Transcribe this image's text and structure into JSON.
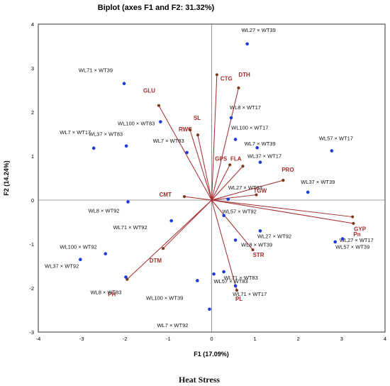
{
  "chart_data": {
    "type": "scatter",
    "title": "Biplot (axes F1 and F2: 31.32%)",
    "xlabel": "F1 (17.09%)",
    "ylabel": "F2 (14.24%)",
    "xlim": [
      -4,
      4
    ],
    "ylim": [
      -3,
      4
    ],
    "xticks": [
      -4,
      -3,
      -2,
      -1,
      0,
      1,
      2,
      3,
      4
    ],
    "yticks": [
      -3,
      -2,
      -1,
      0,
      1,
      2,
      3,
      4
    ],
    "grid": false,
    "observations": [
      {
        "label": "WL27 × WT39",
        "x": 0.82,
        "y": 3.55
      },
      {
        "label": "WL71 × WT39",
        "x": -2.02,
        "y": 2.65
      },
      {
        "label": "WL100 × WT83",
        "x": -1.18,
        "y": 1.78
      },
      {
        "label": "WL8 × WT17",
        "x": 0.45,
        "y": 1.87
      },
      {
        "label": "WL100 × WT17",
        "x": 0.55,
        "y": 1.38
      },
      {
        "label": "WL7 × WT17",
        "x": -2.72,
        "y": 1.18
      },
      {
        "label": "WL37 × WT83",
        "x": -1.97,
        "y": 1.23
      },
      {
        "label": "WL7 × WT83",
        "x": -0.57,
        "y": 1.08
      },
      {
        "label": "WL7 × WT39",
        "x": 1.05,
        "y": 1.19
      },
      {
        "label": "WL57 × WT17",
        "x": 2.77,
        "y": 1.12
      },
      {
        "label": "WL37 × WT17",
        "x": 1.12,
        "y": 0.86
      },
      {
        "label": "WL37 × WT39",
        "x": 2.22,
        "y": 0.18
      },
      {
        "label": "WL27 × WT83",
        "x": 0.38,
        "y": 0.02
      },
      {
        "label": "WL8 × WT92",
        "x": -1.93,
        "y": -0.04
      },
      {
        "label": "WL57 × WT92",
        "x": 0.28,
        "y": -0.35
      },
      {
        "label": "WL71 × WT92",
        "x": -0.93,
        "y": -0.47
      },
      {
        "label": "WL27 × WT92",
        "x": 1.12,
        "y": -0.7
      },
      {
        "label": "WL8 × WT39",
        "x": 0.55,
        "y": -0.91
      },
      {
        "label": "WL27 × WT17",
        "x": 2.85,
        "y": -0.95
      },
      {
        "label": "WL57 × WT39",
        "x": 3.02,
        "y": -0.88
      },
      {
        "label": "WL100 × WT92",
        "x": -2.45,
        "y": -1.22
      },
      {
        "label": "WL37 × WT92",
        "x": -3.03,
        "y": -1.35
      },
      {
        "label": "WL8 × WT83",
        "x": -1.98,
        "y": -1.75
      },
      {
        "label": "WL71 × WT83",
        "x": 0.28,
        "y": -1.63
      },
      {
        "label": "WL57 × WT83",
        "x": 0.05,
        "y": -1.68
      },
      {
        "label": "WL100 × WT39",
        "x": -0.33,
        "y": -1.83
      },
      {
        "label": "WL71 × WT17",
        "x": 0.55,
        "y": -1.95
      },
      {
        "label": "WL7 × WT92",
        "x": -0.05,
        "y": -2.48
      }
    ],
    "variables": [
      {
        "label": "CTG",
        "x": 0.12,
        "y": 2.85
      },
      {
        "label": "DTH",
        "x": 0.62,
        "y": 2.55
      },
      {
        "label": "GLU",
        "x": -1.22,
        "y": 2.15
      },
      {
        "label": "SL",
        "x": -0.5,
        "y": 1.6
      },
      {
        "label": "RWC",
        "x": -0.32,
        "y": 1.48
      },
      {
        "label": "GPS",
        "x": 0.42,
        "y": 0.8
      },
      {
        "label": "FLA",
        "x": 0.72,
        "y": 0.77
      },
      {
        "label": "PRO",
        "x": 1.65,
        "y": 0.45
      },
      {
        "label": "TGW",
        "x": 1.03,
        "y": 0.12
      },
      {
        "label": "CMT",
        "x": -0.63,
        "y": 0.08
      },
      {
        "label": "GYP",
        "x": 3.25,
        "y": -0.38
      },
      {
        "label": "Pn",
        "x": 3.27,
        "y": -0.53
      },
      {
        "label": "STR",
        "x": 0.95,
        "y": -1.13
      },
      {
        "label": "DTM",
        "x": -1.12,
        "y": -1.1
      },
      {
        "label": "PH",
        "x": -1.95,
        "y": -1.8
      },
      {
        "label": "PL",
        "x": 0.58,
        "y": -2.05
      }
    ]
  },
  "caption": "Heat Stress",
  "colors": {
    "observation": "#1f3bd6",
    "variable_line": "#a52a2a",
    "variable_point": "#7a3a1c",
    "variable_label": "#a52a2a",
    "axis": "#000000",
    "zero_line": "#7f7f7f"
  }
}
